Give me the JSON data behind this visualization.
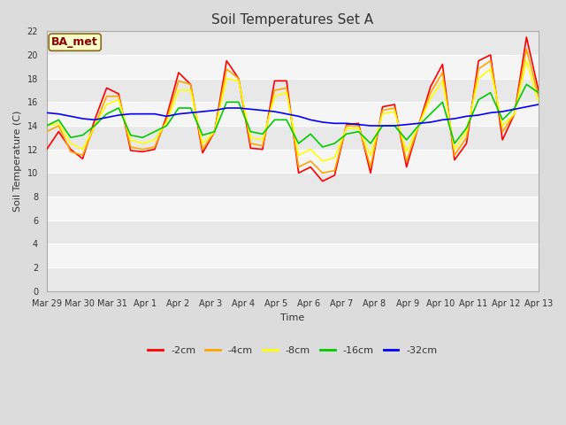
{
  "title": "Soil Temperatures Set A",
  "xlabel": "Time",
  "ylabel": "Soil Temperature (C)",
  "annotation": "BA_met",
  "ylim": [
    0,
    22
  ],
  "yticks": [
    0,
    2,
    4,
    6,
    8,
    10,
    12,
    14,
    16,
    18,
    20,
    22
  ],
  "xtick_labels": [
    "Mar 29",
    "Mar 30",
    "Mar 31",
    "Apr 1",
    "Apr 2",
    "Apr 3",
    "Apr 4",
    "Apr 5",
    "Apr 6",
    "Apr 7",
    "Apr 8",
    "Apr 9",
    "Apr 10",
    "Apr 11",
    "Apr 12",
    "Apr 13"
  ],
  "series": {
    "-2cm": {
      "color": "#FF0000",
      "values": [
        12.0,
        13.5,
        12.0,
        11.2,
        14.5,
        17.2,
        16.7,
        11.9,
        11.8,
        12.0,
        14.8,
        18.5,
        17.5,
        11.7,
        13.5,
        19.5,
        18.0,
        12.1,
        12.0,
        17.8,
        17.8,
        10.0,
        10.5,
        9.3,
        9.8,
        14.1,
        14.2,
        10.0,
        15.6,
        15.8,
        10.5,
        14.0,
        17.3,
        19.2,
        11.1,
        12.5,
        19.5,
        20.0,
        12.8,
        15.0,
        21.5,
        17.0
      ]
    },
    "-4cm": {
      "color": "#FFA500",
      "values": [
        13.5,
        14.0,
        11.8,
        11.5,
        14.0,
        16.5,
        16.5,
        12.2,
        12.0,
        12.2,
        14.5,
        17.8,
        17.5,
        12.0,
        13.5,
        18.8,
        18.0,
        12.5,
        12.3,
        17.0,
        17.2,
        10.5,
        11.0,
        10.0,
        10.2,
        14.0,
        14.0,
        10.5,
        15.3,
        15.5,
        11.0,
        14.0,
        16.8,
        18.5,
        11.5,
        13.0,
        18.8,
        19.5,
        13.5,
        15.0,
        20.5,
        16.5
      ]
    },
    "-8cm": {
      "color": "#FFFF00",
      "values": [
        14.0,
        14.2,
        12.5,
        12.0,
        14.0,
        15.8,
        16.2,
        12.8,
        12.5,
        12.8,
        14.3,
        17.0,
        17.0,
        12.5,
        13.5,
        18.0,
        17.8,
        13.0,
        12.8,
        16.5,
        16.8,
        11.5,
        12.0,
        11.0,
        11.3,
        13.8,
        13.8,
        11.5,
        15.0,
        15.2,
        11.8,
        14.0,
        16.3,
        17.8,
        12.0,
        13.5,
        18.0,
        18.8,
        14.0,
        15.0,
        19.5,
        16.0
      ]
    },
    "-16cm": {
      "color": "#00CC00",
      "values": [
        14.0,
        14.5,
        13.0,
        13.2,
        14.0,
        15.0,
        15.5,
        13.2,
        13.0,
        13.5,
        14.0,
        15.5,
        15.5,
        13.2,
        13.5,
        16.0,
        16.0,
        13.5,
        13.3,
        14.5,
        14.5,
        12.5,
        13.3,
        12.2,
        12.5,
        13.3,
        13.5,
        12.5,
        14.0,
        14.0,
        12.8,
        14.0,
        15.0,
        16.0,
        12.5,
        13.8,
        16.2,
        16.8,
        14.5,
        15.5,
        17.5,
        16.8
      ]
    },
    "-32cm": {
      "color": "#0000FF",
      "values": [
        15.1,
        15.0,
        14.8,
        14.6,
        14.5,
        14.7,
        14.9,
        15.0,
        15.0,
        15.0,
        14.8,
        15.0,
        15.1,
        15.2,
        15.3,
        15.5,
        15.5,
        15.4,
        15.3,
        15.2,
        15.0,
        14.8,
        14.5,
        14.3,
        14.2,
        14.2,
        14.1,
        14.0,
        14.0,
        14.0,
        14.1,
        14.2,
        14.3,
        14.5,
        14.6,
        14.8,
        14.9,
        15.1,
        15.2,
        15.4,
        15.6,
        15.8
      ]
    }
  },
  "bg_color": "#DCDCDC",
  "plot_bg_light": "#F5F5F5",
  "plot_bg_dark": "#E8E8E8",
  "grid_color": "#FFFFFF",
  "linewidth": 1.2,
  "title_fontsize": 11,
  "tick_fontsize": 7,
  "label_fontsize": 8,
  "legend_fontsize": 8
}
